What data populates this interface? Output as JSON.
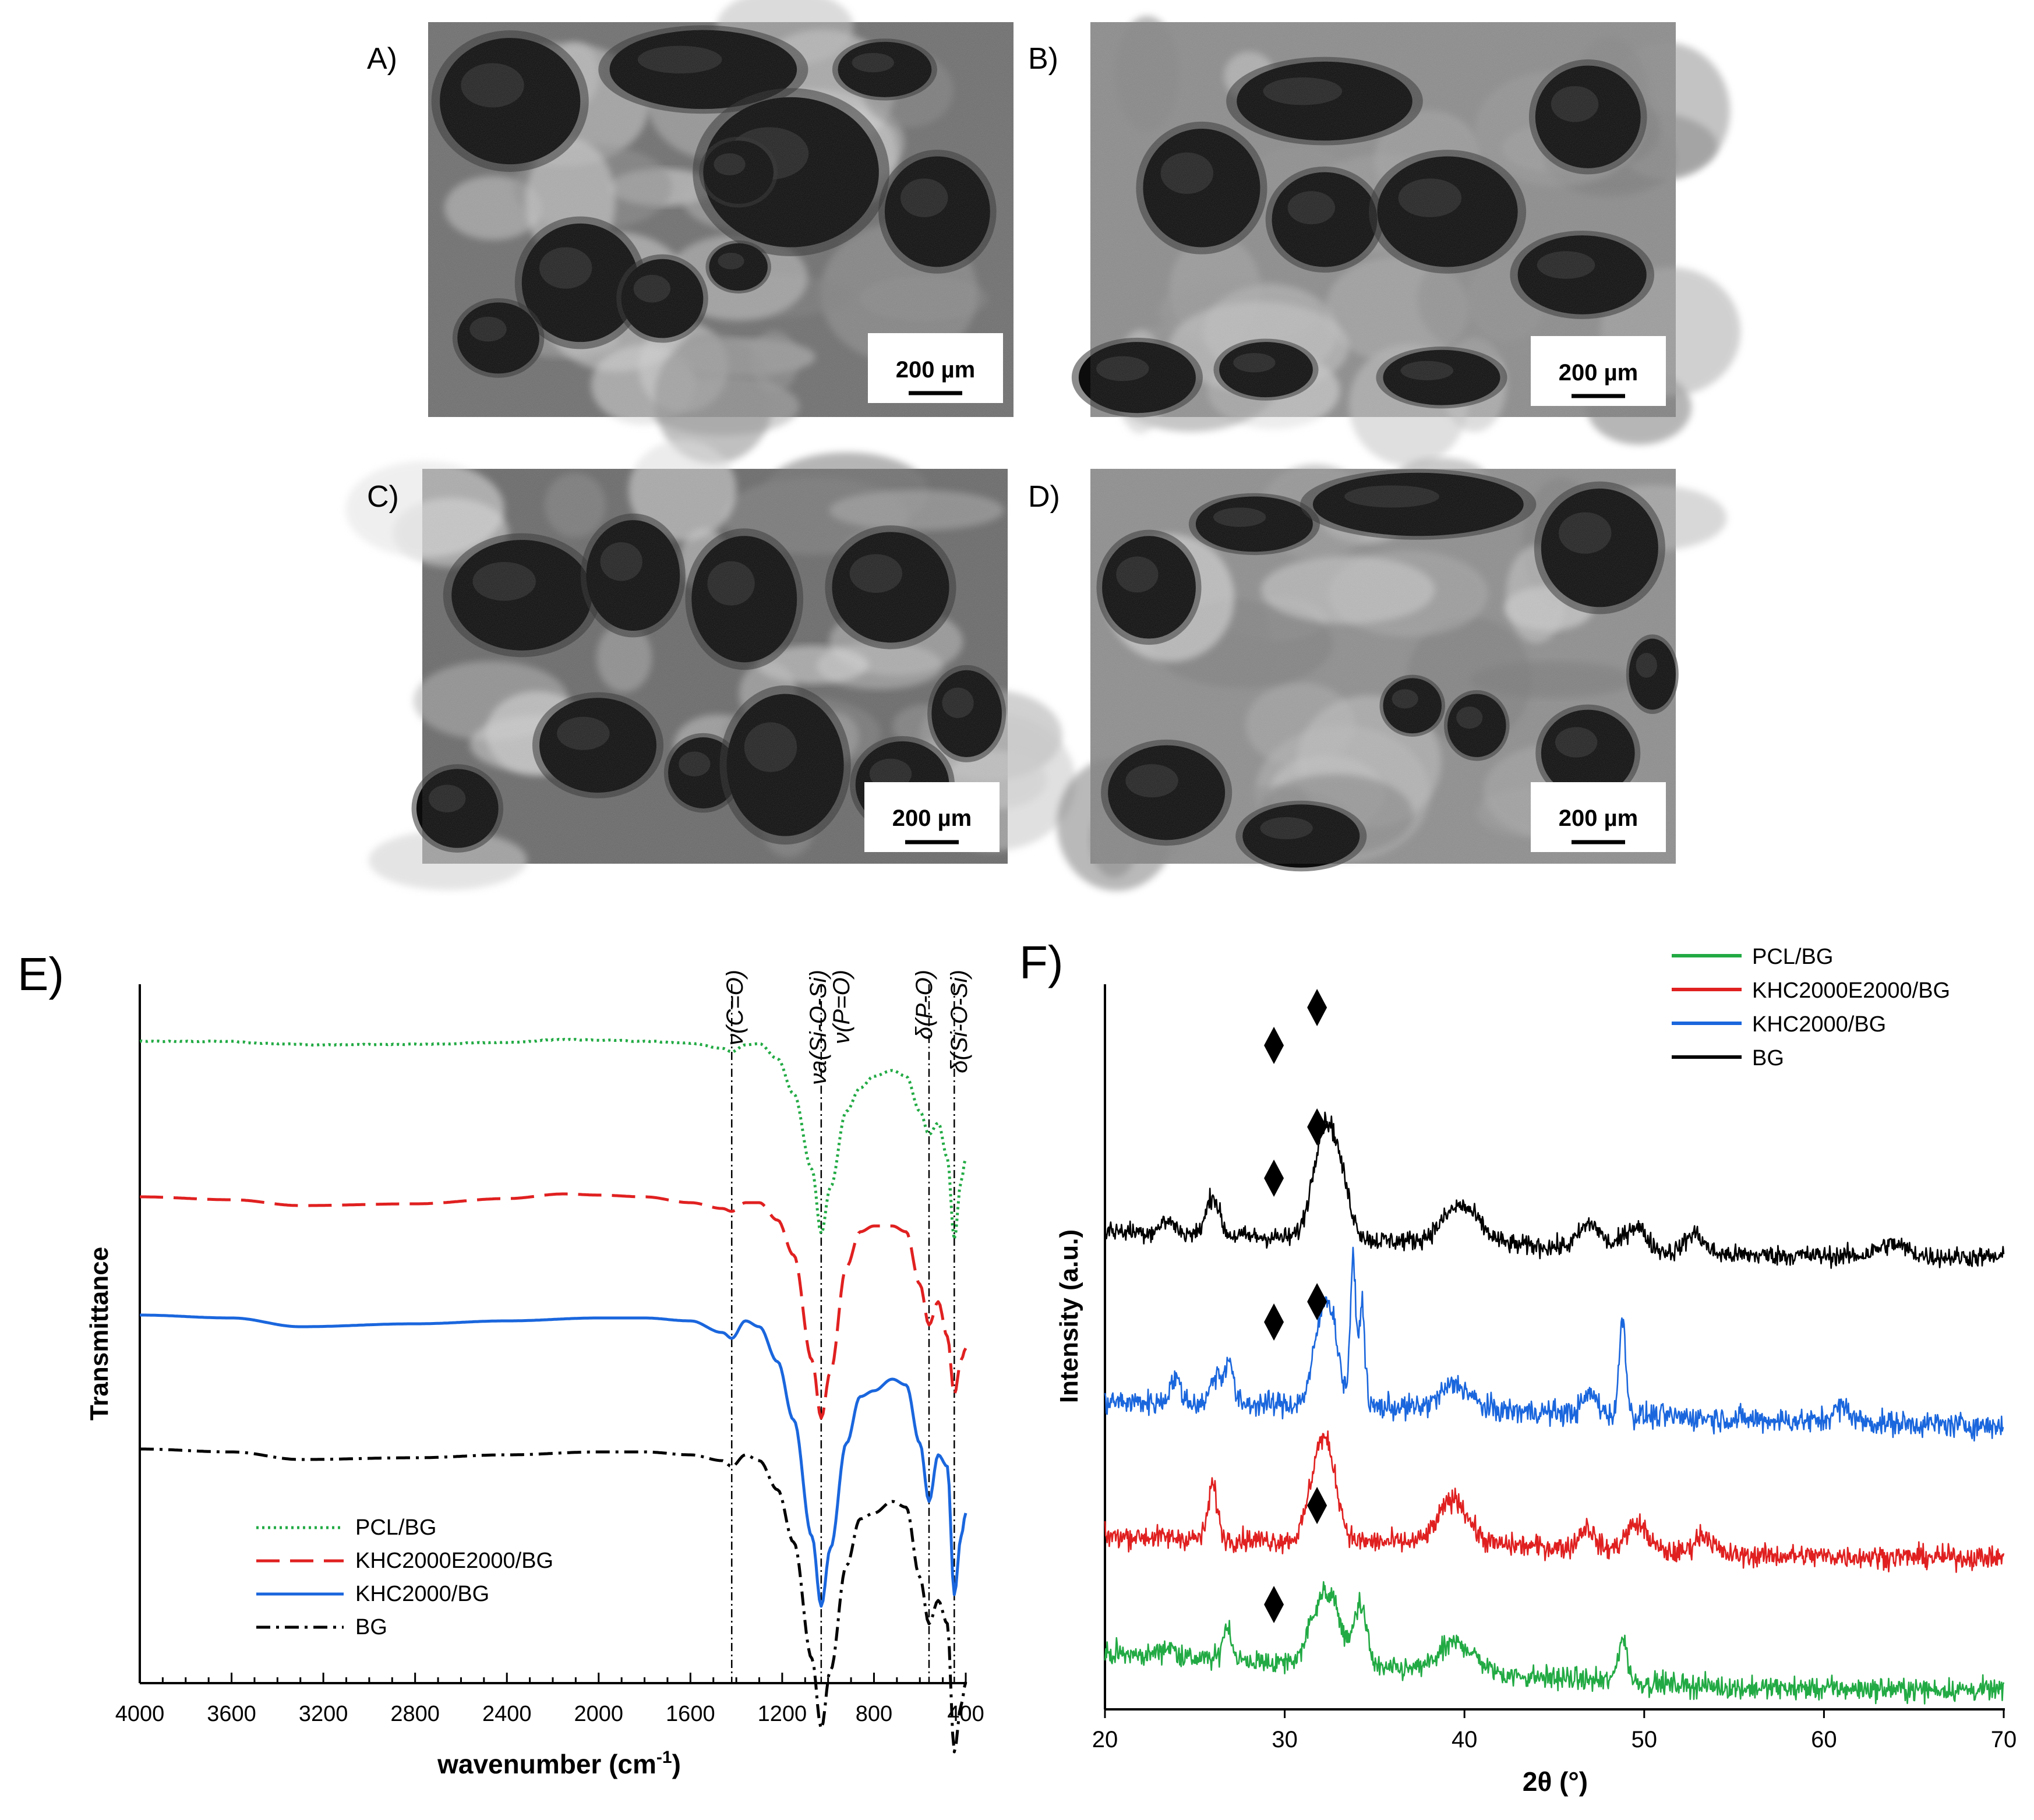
{
  "sem_panels": [
    {
      "letter": "A)",
      "scale": "200 µm"
    },
    {
      "letter": "B)",
      "scale": "200 µm"
    },
    {
      "letter": "C)",
      "scale": "200 µm"
    },
    {
      "letter": "D)",
      "scale": "200 µm"
    }
  ],
  "ftir": {
    "panel_letter": "E)",
    "xlabel": "wavenumber (cm",
    "xlabel_sup": "-1",
    "xlabel_end": ")",
    "ylabel": "Transmittance",
    "x_ticks": [
      "4000",
      "3600",
      "3200",
      "2800",
      "2400",
      "2000",
      "1600",
      "1200",
      "800",
      "400"
    ],
    "bands": [
      {
        "label": "ν(C=O)"
      },
      {
        "label": "νa(Si-O-Si)"
      },
      {
        "label": "ν(P=O)"
      },
      {
        "label": "δ(P-O)"
      },
      {
        "label": "δ(Si-O-Si)"
      }
    ],
    "legend": [
      "PCL/BG",
      "KHC2000E2000/BG",
      "KHC2000/BG",
      "BG"
    ]
  },
  "xrd": {
    "panel_letter": "F)",
    "xlabel": "2θ (°)",
    "ylabel": "Intensity (a.u.)",
    "x_ticks": [
      "20",
      "30",
      "40",
      "50",
      "60",
      "70"
    ],
    "legend": [
      "PCL/BG",
      "KHC2000E2000/BG",
      "KHC2000/BG",
      "BG"
    ]
  },
  "chart_data": [
    {
      "type": "line",
      "panel": "E",
      "xlabel": "wavenumber (cm-1)",
      "ylabel": "Transmittance",
      "xlim": [
        4000,
        400
      ],
      "x_reversed": true,
      "band_positions_cm-1": {
        "ν(C=O)": 1420,
        "νa(Si-O-Si)": 1030,
        "ν(P=O)": 1030,
        "δ(P-O)": 560,
        "δ(Si-O-Si)": 450
      },
      "series": [
        {
          "name": "PCL/BG",
          "color": "#22aa44",
          "style": "dotted",
          "points": [
            [
              4000,
              0
            ],
            [
              3600,
              0
            ],
            [
              3500,
              -0.3
            ],
            [
              3200,
              -0.6
            ],
            [
              2800,
              -0.5
            ],
            [
              2400,
              -0.2
            ],
            [
              2150,
              0.3
            ],
            [
              2000,
              0.2
            ],
            [
              1800,
              0
            ],
            [
              1600,
              -0.3
            ],
            [
              1460,
              -1.2
            ],
            [
              1420,
              -1.8
            ],
            [
              1360,
              -0.6
            ],
            [
              1300,
              -0.4
            ],
            [
              1220,
              -3
            ],
            [
              1150,
              -9
            ],
            [
              1070,
              -22
            ],
            [
              1030,
              -33
            ],
            [
              990,
              -25
            ],
            [
              920,
              -12
            ],
            [
              860,
              -8
            ],
            [
              800,
              -6
            ],
            [
              720,
              -5
            ],
            [
              660,
              -6
            ],
            [
              600,
              -12
            ],
            [
              560,
              -16
            ],
            [
              520,
              -14
            ],
            [
              480,
              -20
            ],
            [
              450,
              -34
            ],
            [
              420,
              -24
            ],
            [
              400,
              -20
            ]
          ]
        },
        {
          "name": "KHC2000E2000/BG",
          "color": "#e02020",
          "style": "dashed",
          "points": [
            [
              4000,
              0
            ],
            [
              3600,
              -0.5
            ],
            [
              3300,
              -1.5
            ],
            [
              2800,
              -1.2
            ],
            [
              2400,
              -0.3
            ],
            [
              2150,
              0.5
            ],
            [
              2000,
              0.3
            ],
            [
              1800,
              0
            ],
            [
              1600,
              -1
            ],
            [
              1460,
              -2
            ],
            [
              1420,
              -2.5
            ],
            [
              1360,
              -1
            ],
            [
              1300,
              -1
            ],
            [
              1220,
              -4
            ],
            [
              1150,
              -10
            ],
            [
              1070,
              -28
            ],
            [
              1030,
              -38
            ],
            [
              990,
              -30
            ],
            [
              920,
              -12
            ],
            [
              860,
              -6
            ],
            [
              800,
              -5
            ],
            [
              720,
              -5
            ],
            [
              660,
              -6
            ],
            [
              600,
              -15
            ],
            [
              560,
              -22
            ],
            [
              520,
              -18
            ],
            [
              480,
              -24
            ],
            [
              450,
              -34
            ],
            [
              420,
              -28
            ],
            [
              400,
              -26
            ]
          ]
        },
        {
          "name": "KHC2000/BG",
          "color": "#1a66dd",
          "style": "solid",
          "points": [
            [
              4000,
              0
            ],
            [
              3600,
              -0.5
            ],
            [
              3300,
              -2
            ],
            [
              2800,
              -1.5
            ],
            [
              2400,
              -1
            ],
            [
              2000,
              -0.5
            ],
            [
              1800,
              -0.5
            ],
            [
              1600,
              -1
            ],
            [
              1460,
              -3
            ],
            [
              1420,
              -4
            ],
            [
              1360,
              -1
            ],
            [
              1300,
              -2
            ],
            [
              1220,
              -8
            ],
            [
              1150,
              -18
            ],
            [
              1070,
              -38
            ],
            [
              1030,
              -50
            ],
            [
              990,
              -40
            ],
            [
              920,
              -22
            ],
            [
              860,
              -14
            ],
            [
              800,
              -13
            ],
            [
              720,
              -11
            ],
            [
              660,
              -12
            ],
            [
              600,
              -22
            ],
            [
              560,
              -32
            ],
            [
              520,
              -24
            ],
            [
              480,
              -26
            ],
            [
              450,
              -48
            ],
            [
              420,
              -38
            ],
            [
              400,
              -34
            ]
          ]
        },
        {
          "name": "BG",
          "color": "#000000",
          "style": "dashdot",
          "points": [
            [
              4000,
              0
            ],
            [
              3600,
              -0.5
            ],
            [
              3300,
              -1.8
            ],
            [
              2800,
              -1.5
            ],
            [
              2400,
              -1
            ],
            [
              2000,
              -0.5
            ],
            [
              1800,
              -0.5
            ],
            [
              1600,
              -1
            ],
            [
              1460,
              -2
            ],
            [
              1420,
              -3
            ],
            [
              1360,
              -1
            ],
            [
              1300,
              -2
            ],
            [
              1220,
              -7
            ],
            [
              1150,
              -16
            ],
            [
              1070,
              -36
            ],
            [
              1030,
              -48
            ],
            [
              990,
              -38
            ],
            [
              920,
              -20
            ],
            [
              860,
              -12
            ],
            [
              800,
              -11
            ],
            [
              720,
              -9
            ],
            [
              660,
              -10
            ],
            [
              600,
              -22
            ],
            [
              560,
              -30
            ],
            [
              520,
              -26
            ],
            [
              480,
              -30
            ],
            [
              450,
              -52
            ],
            [
              420,
              -44
            ],
            [
              400,
              -40
            ]
          ]
        }
      ]
    },
    {
      "type": "line",
      "panel": "F",
      "xlabel": "2θ (°)",
      "ylabel": "Intensity (a.u.)",
      "xlim": [
        20,
        70
      ],
      "marker_positions_2theta": [
        29.4,
        31.8
      ],
      "series": [
        {
          "name": "PCL/BG",
          "color": "#22aa44",
          "offset": 3,
          "noise": 0.45,
          "trend": [
            [
              20,
              2.4
            ],
            [
              30,
              2.0
            ],
            [
              40,
              1.6
            ],
            [
              55,
              1.0
            ],
            [
              70,
              0.9
            ]
          ],
          "peaks": [
            [
              23.5,
              0.4,
              0.5
            ],
            [
              26.8,
              1.4,
              0.25
            ],
            [
              31.9,
              2.3,
              0.6
            ],
            [
              32.8,
              1.8,
              0.5
            ],
            [
              34.2,
              2.6,
              0.35
            ],
            [
              39.6,
              1.2,
              1.0
            ],
            [
              48.8,
              1.8,
              0.25
            ]
          ]
        },
        {
          "name": "KHC2000E2000/BG",
          "color": "#e02020",
          "offset": 2,
          "noise": 0.45,
          "trend": [
            [
              20,
              1.5
            ],
            [
              30,
              1.3
            ],
            [
              40,
              1.2
            ],
            [
              55,
              0.7
            ],
            [
              70,
              0.6
            ]
          ],
          "peaks": [
            [
              26.0,
              2.2,
              0.25
            ],
            [
              31.9,
              3.2,
              0.55
            ],
            [
              32.6,
              2.0,
              0.5
            ],
            [
              39.4,
              1.8,
              0.8
            ],
            [
              46.8,
              0.9,
              0.4
            ],
            [
              49.6,
              1.1,
              0.6
            ],
            [
              53.3,
              0.8,
              0.5
            ]
          ]
        },
        {
          "name": "KHC2000/BG",
          "color": "#1a66dd",
          "offset": 1,
          "noise": 0.5,
          "trend": [
            [
              20,
              1.5
            ],
            [
              30,
              1.4
            ],
            [
              40,
              1.2
            ],
            [
              55,
              0.8
            ],
            [
              70,
              0.5
            ]
          ],
          "peaks": [
            [
              23.9,
              1.0,
              0.3
            ],
            [
              26.2,
              1.2,
              0.3
            ],
            [
              26.9,
              1.8,
              0.22
            ],
            [
              32.1,
              3.4,
              0.5
            ],
            [
              32.7,
              2.0,
              0.4
            ],
            [
              33.8,
              5.8,
              0.16
            ],
            [
              34.3,
              4.2,
              0.16
            ],
            [
              39.5,
              1.0,
              0.8
            ],
            [
              47.0,
              0.8,
              0.4
            ],
            [
              48.8,
              4.0,
              0.18
            ],
            [
              61.0,
              0.6,
              0.5
            ]
          ]
        },
        {
          "name": "BG",
          "color": "#000000",
          "offset": 0,
          "noise": 0.4,
          "trend": [
            [
              20,
              1.6
            ],
            [
              30,
              1.3
            ],
            [
              40,
              1.1
            ],
            [
              55,
              0.6
            ],
            [
              70,
              0.5
            ]
          ],
          "peaks": [
            [
              23.5,
              0.5,
              0.4
            ],
            [
              26.0,
              1.6,
              0.35
            ],
            [
              32.1,
              3.8,
              0.6
            ],
            [
              33.0,
              2.4,
              0.6
            ],
            [
              39.8,
              1.5,
              1.0
            ],
            [
              47.0,
              1.0,
              0.6
            ],
            [
              49.5,
              1.0,
              0.6
            ],
            [
              52.8,
              0.8,
              0.5
            ],
            [
              63.8,
              0.5,
              0.8
            ]
          ]
        }
      ]
    }
  ]
}
